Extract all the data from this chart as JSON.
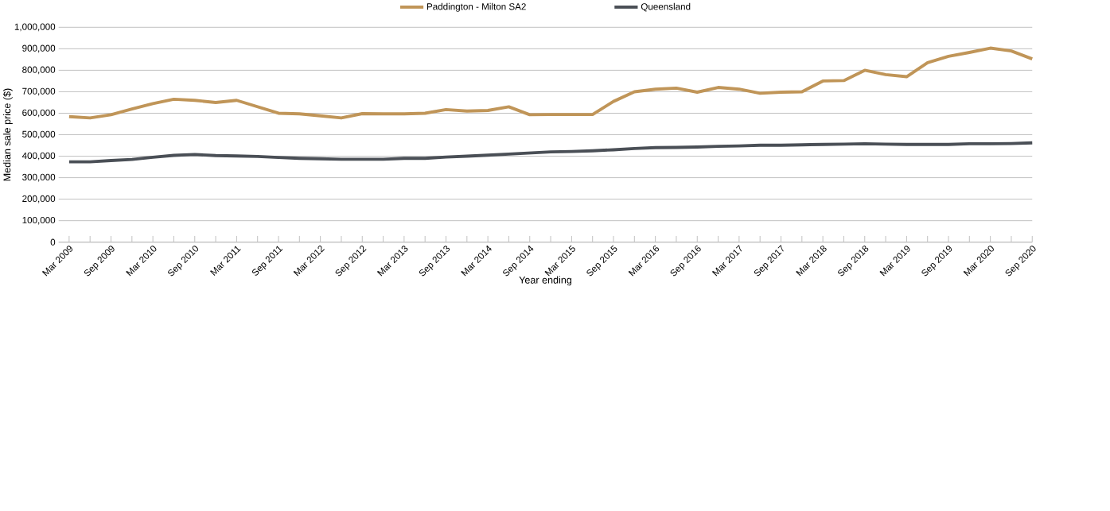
{
  "chart_data": {
    "type": "line",
    "xlabel": "Year ending",
    "ylabel": "Median sale price ($)",
    "categories": [
      "Mar 2009",
      null,
      "Sep 2009",
      null,
      "Mar 2010",
      null,
      "Sep 2010",
      null,
      "Mar 2011",
      null,
      "Sep 2011",
      null,
      "Mar 2012",
      null,
      "Sep 2012",
      null,
      "Mar 2013",
      null,
      "Sep 2013",
      null,
      "Mar 2014",
      null,
      "Sep 2014",
      null,
      "Mar 2015",
      null,
      "Sep 2015",
      null,
      "Mar 2016",
      null,
      "Sep 2016",
      null,
      "Mar 2017",
      null,
      "Sep 2017",
      null,
      "Mar 2018",
      null,
      "Sep 2018",
      null,
      "Mar 2019",
      null,
      "Sep 2019",
      null,
      "Mar 2020",
      null,
      "Sep 2020"
    ],
    "series": [
      {
        "name": "Paddington - Milton SA2",
        "color": "#c09558",
        "values": [
          584000,
          578000,
          593000,
          620000,
          645000,
          665000,
          660000,
          650000,
          660000,
          630000,
          600000,
          597000,
          588000,
          578000,
          598000,
          597000,
          597000,
          600000,
          617000,
          610000,
          613000,
          630000,
          593000,
          594000,
          594000,
          594000,
          655000,
          700000,
          712000,
          717000,
          698000,
          720000,
          712000,
          693000,
          698000,
          700000,
          750000,
          752000,
          800000,
          780000,
          770000,
          835000,
          865000,
          883000,
          903000,
          890000,
          853000
        ]
      },
      {
        "name": "Queensland",
        "color": "#4a4f56",
        "values": [
          374000,
          374000,
          380000,
          385000,
          395000,
          404000,
          408000,
          403000,
          401000,
          399000,
          394000,
          390000,
          388000,
          386000,
          386000,
          386000,
          390000,
          390000,
          396000,
          400000,
          405000,
          410000,
          415000,
          420000,
          422000,
          425000,
          430000,
          436000,
          440000,
          441000,
          443000,
          446000,
          448000,
          451000,
          451000,
          453000,
          455000,
          456000,
          458000,
          456000,
          455000,
          455000,
          455000,
          458000,
          458000,
          459000,
          462000
        ]
      }
    ],
    "ylim": [
      0,
      1000000
    ],
    "yticks": [
      {
        "value": 0,
        "label": "0"
      },
      {
        "value": 100000,
        "label": "100,000"
      },
      {
        "value": 200000,
        "label": "200,000"
      },
      {
        "value": 300000,
        "label": "300,000"
      },
      {
        "value": 400000,
        "label": "400,000"
      },
      {
        "value": 500000,
        "label": "500,000"
      },
      {
        "value": 600000,
        "label": "600,000"
      },
      {
        "value": 700000,
        "label": "700,000"
      },
      {
        "value": 800000,
        "label": "800,000"
      },
      {
        "value": 900000,
        "label": "900,000"
      },
      {
        "value": 1000000,
        "label": "1,000,000"
      }
    ],
    "grid": "y",
    "legend": "top",
    "marker": "none",
    "line_style": "solid"
  }
}
